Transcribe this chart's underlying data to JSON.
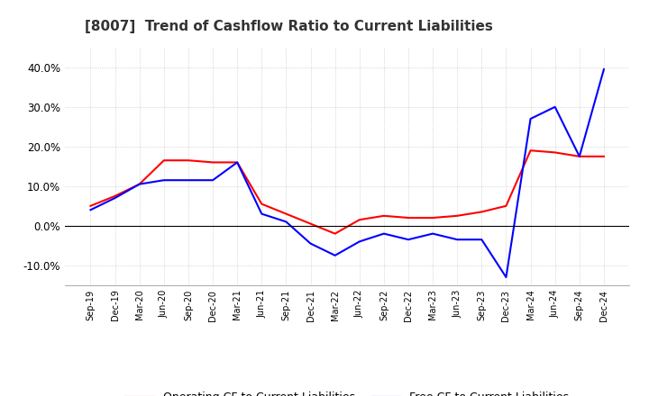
{
  "title": "[8007]  Trend of Cashflow Ratio to Current Liabilities",
  "x_labels": [
    "Sep-19",
    "Dec-19",
    "Mar-20",
    "Jun-20",
    "Sep-20",
    "Dec-20",
    "Mar-21",
    "Jun-21",
    "Sep-21",
    "Dec-21",
    "Mar-22",
    "Jun-22",
    "Sep-22",
    "Dec-22",
    "Mar-23",
    "Jun-23",
    "Sep-23",
    "Dec-23",
    "Mar-24",
    "Jun-24",
    "Sep-24",
    "Dec-24"
  ],
  "operating_cf": [
    5.0,
    7.5,
    10.5,
    16.5,
    16.5,
    16.0,
    16.0,
    5.5,
    3.0,
    0.5,
    -2.0,
    1.5,
    2.5,
    2.0,
    2.0,
    2.5,
    3.5,
    5.0,
    19.0,
    18.5,
    17.5,
    17.5
  ],
  "free_cf": [
    4.0,
    7.0,
    10.5,
    11.5,
    11.5,
    11.5,
    16.0,
    3.0,
    1.0,
    -4.5,
    -7.5,
    -4.0,
    -2.0,
    -3.5,
    -2.0,
    -3.5,
    -3.5,
    -13.0,
    27.0,
    30.0,
    17.5,
    39.5
  ],
  "ylim": [
    -15.0,
    45.0
  ],
  "yticks": [
    -10.0,
    0.0,
    10.0,
    20.0,
    30.0,
    40.0
  ],
  "operating_color": "#FF0000",
  "free_color": "#0000FF",
  "grid_color": "#AAAAAA",
  "background_color": "#FFFFFF",
  "title_fontsize": 11,
  "legend_labels": [
    "Operating CF to Current Liabilities",
    "Free CF to Current Liabilities"
  ],
  "line_width": 1.5
}
